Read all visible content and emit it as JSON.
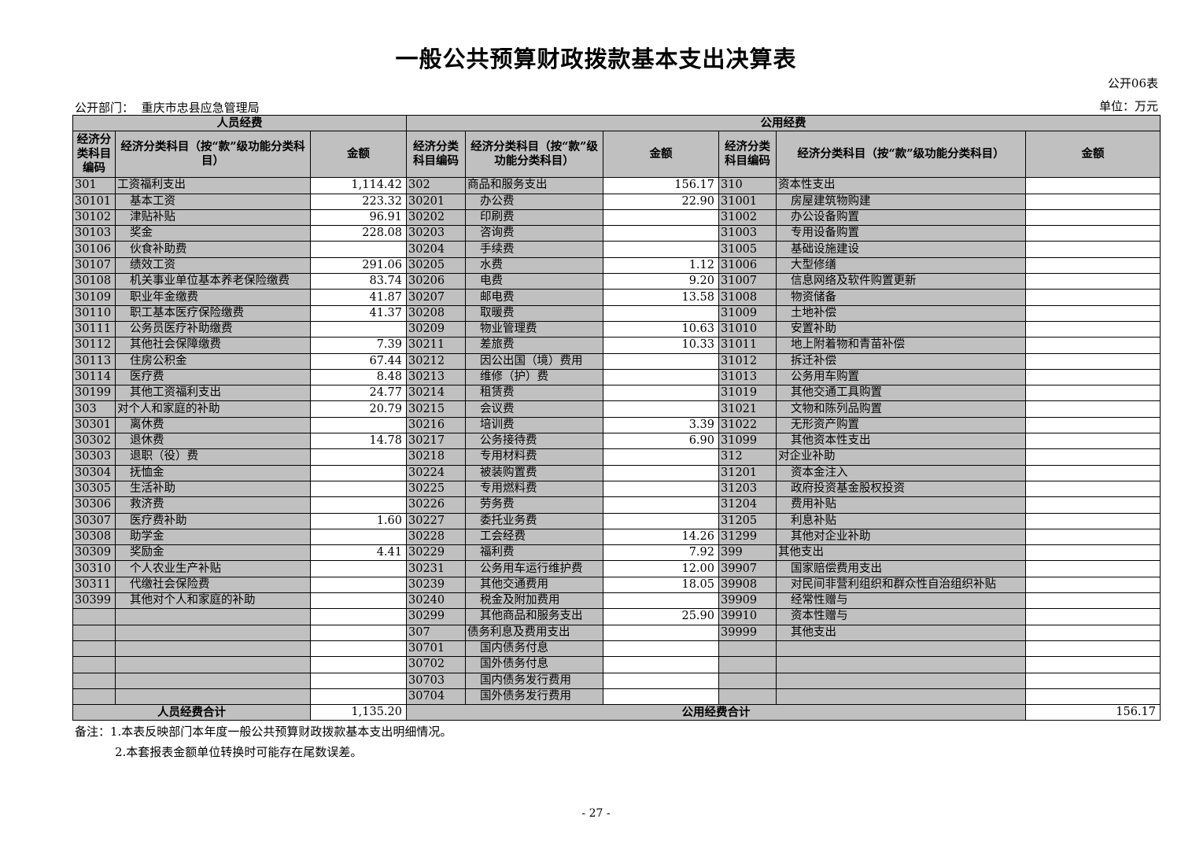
{
  "title": "一般公共预算财政拨款基本支出决算表",
  "form_no": "公开06表",
  "dept_label": "公开部门：",
  "dept": "重庆市忠县应急管理局",
  "unit": "单位：万元",
  "sections": {
    "personnel": "人员经费",
    "public": "公用经费"
  },
  "headers": {
    "code1": "经济分类科目编码",
    "name1": "经济分类科目（按“款”级功能分类科目）",
    "amount": "金额",
    "code2": "经济分类科目编码",
    "name2": "经济分类科目（按“款”级功能分类科目）",
    "code3": "经济分类科目编码",
    "name3": "经济分类科目（按“款”级功能分类科目）"
  },
  "personnel_rows": [
    [
      "301",
      "工资福利支出",
      "1,114.42",
      0
    ],
    [
      "30101",
      "基本工资",
      "223.32",
      1
    ],
    [
      "30102",
      "津贴补贴",
      "96.91",
      1
    ],
    [
      "30103",
      "奖金",
      "228.08",
      1
    ],
    [
      "30106",
      "伙食补助费",
      "",
      1
    ],
    [
      "30107",
      "绩效工资",
      "291.06",
      1
    ],
    [
      "30108",
      "机关事业单位基本养老保险缴费",
      "83.74",
      1
    ],
    [
      "30109",
      "职业年金缴费",
      "41.87",
      1
    ],
    [
      "30110",
      "职工基本医疗保险缴费",
      "41.37",
      1
    ],
    [
      "30111",
      "公务员医疗补助缴费",
      "",
      1
    ],
    [
      "30112",
      "其他社会保障缴费",
      "7.39",
      1
    ],
    [
      "30113",
      "住房公积金",
      "67.44",
      1
    ],
    [
      "30114",
      "医疗费",
      "8.48",
      1
    ],
    [
      "30199",
      "其他工资福利支出",
      "24.77",
      1
    ],
    [
      "303",
      "对个人和家庭的补助",
      "20.79",
      0
    ],
    [
      "30301",
      "离休费",
      "",
      1
    ],
    [
      "30302",
      "退休费",
      "14.78",
      1
    ],
    [
      "30303",
      "退职（役）费",
      "",
      1
    ],
    [
      "30304",
      "抚恤金",
      "",
      1
    ],
    [
      "30305",
      "生活补助",
      "",
      1
    ],
    [
      "30306",
      "救济费",
      "",
      1
    ],
    [
      "30307",
      "医疗费补助",
      "1.60",
      1
    ],
    [
      "30308",
      "助学金",
      "",
      1
    ],
    [
      "30309",
      "奖励金",
      "4.41",
      1
    ],
    [
      "30310",
      "个人农业生产补贴",
      "",
      1
    ],
    [
      "30311",
      "代缴社会保险费",
      "",
      1
    ],
    [
      "30399",
      "其他对个人和家庭的补助",
      "",
      1
    ]
  ],
  "public_rows_a": [
    [
      "302",
      "商品和服务支出",
      "156.17",
      0
    ],
    [
      "30201",
      "办公费",
      "22.90",
      1
    ],
    [
      "30202",
      "印刷费",
      "",
      1
    ],
    [
      "30203",
      "咨询费",
      "",
      1
    ],
    [
      "30204",
      "手续费",
      "",
      1
    ],
    [
      "30205",
      "水费",
      "1.12",
      1
    ],
    [
      "30206",
      "电费",
      "9.20",
      1
    ],
    [
      "30207",
      "邮电费",
      "13.58",
      1
    ],
    [
      "30208",
      "取暖费",
      "",
      1
    ],
    [
      "30209",
      "物业管理费",
      "10.63",
      1
    ],
    [
      "30211",
      "差旅费",
      "10.33",
      1
    ],
    [
      "30212",
      "因公出国（境）费用",
      "",
      1
    ],
    [
      "30213",
      "维修（护）费",
      "",
      1
    ],
    [
      "30214",
      "租赁费",
      "",
      1
    ],
    [
      "30215",
      "会议费",
      "",
      1
    ],
    [
      "30216",
      "培训费",
      "3.39",
      1
    ],
    [
      "30217",
      "公务接待费",
      "6.90",
      1
    ],
    [
      "30218",
      "专用材料费",
      "",
      1
    ],
    [
      "30224",
      "被装购置费",
      "",
      1
    ],
    [
      "30225",
      "专用燃料费",
      "",
      1
    ],
    [
      "30226",
      "劳务费",
      "",
      1
    ],
    [
      "30227",
      "委托业务费",
      "",
      1
    ],
    [
      "30228",
      "工会经费",
      "14.26",
      1
    ],
    [
      "30229",
      "福利费",
      "7.92",
      1
    ],
    [
      "30231",
      "公务用车运行维护费",
      "12.00",
      1
    ],
    [
      "30239",
      "其他交通费用",
      "18.05",
      1
    ],
    [
      "30240",
      "税金及附加费用",
      "",
      1
    ],
    [
      "30299",
      "其他商品和服务支出",
      "25.90",
      1
    ],
    [
      "307",
      "债务利息及费用支出",
      "",
      0
    ],
    [
      "30701",
      "国内债务付息",
      "",
      1
    ],
    [
      "30702",
      "国外债务付息",
      "",
      1
    ],
    [
      "30703",
      "国内债务发行费用",
      "",
      1
    ],
    [
      "30704",
      "国外债务发行费用",
      "",
      1
    ]
  ],
  "public_rows_b": [
    [
      "310",
      "资本性支出",
      "",
      0
    ],
    [
      "31001",
      "房屋建筑物购建",
      "",
      1
    ],
    [
      "31002",
      "办公设备购置",
      "",
      1
    ],
    [
      "31003",
      "专用设备购置",
      "",
      1
    ],
    [
      "31005",
      "基础设施建设",
      "",
      1
    ],
    [
      "31006",
      "大型修缮",
      "",
      1
    ],
    [
      "31007",
      "信息网络及软件购置更新",
      "",
      1
    ],
    [
      "31008",
      "物资储备",
      "",
      1
    ],
    [
      "31009",
      "土地补偿",
      "",
      1
    ],
    [
      "31010",
      "安置补助",
      "",
      1
    ],
    [
      "31011",
      "地上附着物和青苗补偿",
      "",
      1
    ],
    [
      "31012",
      "拆迁补偿",
      "",
      1
    ],
    [
      "31013",
      "公务用车购置",
      "",
      1
    ],
    [
      "31019",
      "其他交通工具购置",
      "",
      1
    ],
    [
      "31021",
      "文物和陈列品购置",
      "",
      1
    ],
    [
      "31022",
      "无形资产购置",
      "",
      1
    ],
    [
      "31099",
      "其他资本性支出",
      "",
      1
    ],
    [
      "312",
      "对企业补助",
      "",
      0
    ],
    [
      "31201",
      "资本金注入",
      "",
      1
    ],
    [
      "31203",
      "政府投资基金股权投资",
      "",
      1
    ],
    [
      "31204",
      "费用补贴",
      "",
      1
    ],
    [
      "31205",
      "利息补贴",
      "",
      1
    ],
    [
      "31299",
      "其他对企业补助",
      "",
      1
    ],
    [
      "399",
      "其他支出",
      "",
      0
    ],
    [
      "39907",
      "国家赔偿费用支出",
      "",
      1
    ],
    [
      "39908",
      "对民间非营利组织和群众性自治组织补贴",
      "",
      1
    ],
    [
      "39909",
      "经常性赠与",
      "",
      1
    ],
    [
      "39910",
      "资本性赠与",
      "",
      1
    ],
    [
      "39999",
      "其他支出",
      "",
      1
    ]
  ],
  "totals": {
    "personnel_label": "人员经费合计",
    "personnel_value": "1,135.20",
    "public_label": "公用经费合计",
    "public_value": "156.17"
  },
  "notes": [
    "备注：1.本表反映部门本年度一般公共预算财政拨款基本支出明细情况。",
    "2.本套报表金额单位转换时可能存在尾数误差。"
  ],
  "page_number": "- 27 -"
}
